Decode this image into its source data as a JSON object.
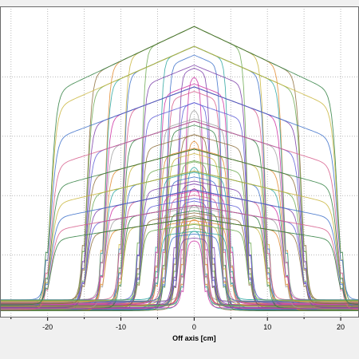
{
  "chart_data": {
    "type": "line",
    "title": "",
    "xlabel": "Off axis [cm]",
    "ylabel": "",
    "xlim": [
      -26.5,
      22.5
    ],
    "ylim": [
      0,
      1
    ],
    "x_ticks": [
      -20,
      -10,
      0,
      10,
      20
    ],
    "x_tick_labels": [
      "-20",
      "-10",
      "0",
      "10",
      "20"
    ],
    "grid": true,
    "grid_style": "dotted",
    "depth_levels": [
      1.0,
      0.86,
      0.73,
      0.62,
      0.53,
      0.46,
      0.4,
      0.35,
      0.31
    ],
    "field_half_widths_cm": [
      1.5,
      2.5,
      4,
      5,
      7.5,
      10,
      12.5,
      15,
      20
    ],
    "series_note_colors": [
      "#cc2fa2",
      "#7a3da8",
      "#3b6fc9",
      "#2aa6a0",
      "#6aa84f",
      "#c9b53b",
      "#e08a2e",
      "#8c6d3a",
      "#2f7f3f",
      "#a0a0a0",
      "#5b5bd6",
      "#d65b8a"
    ],
    "envelope": {
      "x": [
        -26.5,
        0,
        22.5
      ],
      "y": [
        0.15,
        0.93,
        0.3
      ]
    },
    "background_level": 0.0
  },
  "axis": {
    "x_title": "Off axis [cm]"
  }
}
